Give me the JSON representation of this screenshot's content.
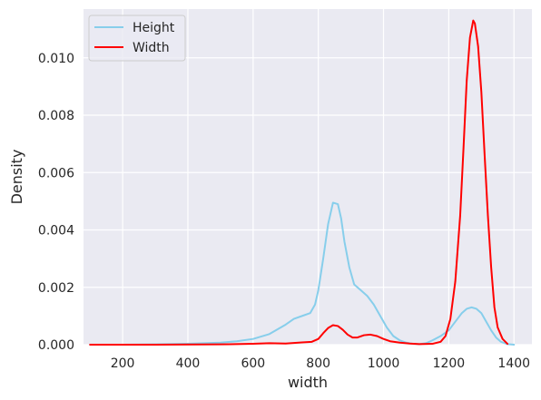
{
  "chart_data": {
    "type": "line",
    "title": "",
    "xlabel": "width",
    "ylabel": "Density",
    "xlim": [
      80,
      1455
    ],
    "ylim": [
      0,
      0.0117
    ],
    "x_ticks": [
      200,
      400,
      600,
      800,
      1000,
      1200,
      1400
    ],
    "y_ticks": [
      0.0,
      0.002,
      0.004,
      0.006,
      0.008,
      0.01
    ],
    "x_tick_labels": [
      "200",
      "400",
      "600",
      "800",
      "1000",
      "1200",
      "1400"
    ],
    "y_tick_labels": [
      "0.000",
      "0.002",
      "0.004",
      "0.006",
      "0.008",
      "0.010"
    ],
    "grid": true,
    "legend_position": "top-left",
    "series": [
      {
        "name": "Height",
        "color": "#87ceeb",
        "x": [
          100,
          200,
          300,
          400,
          500,
          550,
          600,
          650,
          700,
          725,
          750,
          775,
          790,
          800,
          815,
          830,
          845,
          860,
          870,
          880,
          895,
          910,
          930,
          950,
          970,
          990,
          1010,
          1030,
          1050,
          1070,
          1090,
          1110,
          1130,
          1150,
          1175,
          1200,
          1220,
          1240,
          1255,
          1270,
          1285,
          1300,
          1315,
          1330,
          1345,
          1360,
          1380,
          1400
        ],
        "y": [
          0.0,
          0.0,
          1e-05,
          3e-05,
          7e-05,
          0.00012,
          0.0002,
          0.00037,
          0.0007,
          0.0009,
          0.001,
          0.0011,
          0.0014,
          0.0019,
          0.003,
          0.0042,
          0.00495,
          0.0049,
          0.0044,
          0.0036,
          0.0027,
          0.0021,
          0.0019,
          0.0017,
          0.0014,
          0.001,
          0.0006,
          0.0003,
          0.00015,
          7e-05,
          3e-05,
          2e-05,
          5e-05,
          0.00015,
          0.0003,
          0.0005,
          0.0008,
          0.0011,
          0.00125,
          0.0013,
          0.00125,
          0.0011,
          0.0008,
          0.0005,
          0.00025,
          0.0001,
          2e-05,
          0.0
        ]
      },
      {
        "name": "Width",
        "color": "#ff0000",
        "x": [
          100,
          300,
          500,
          600,
          650,
          700,
          750,
          780,
          800,
          815,
          830,
          845,
          860,
          875,
          890,
          905,
          920,
          940,
          960,
          980,
          1000,
          1020,
          1050,
          1080,
          1110,
          1150,
          1175,
          1190,
          1205,
          1220,
          1235,
          1245,
          1255,
          1265,
          1275,
          1280,
          1290,
          1300,
          1310,
          1320,
          1330,
          1340,
          1350,
          1365,
          1380
        ],
        "y": [
          0.0,
          0.0,
          1e-05,
          3e-05,
          5e-05,
          4e-05,
          8e-05,
          0.0001,
          0.0002,
          0.0004,
          0.00058,
          0.00068,
          0.00065,
          0.00052,
          0.00035,
          0.00025,
          0.00025,
          0.00033,
          0.00035,
          0.0003,
          0.0002,
          0.00012,
          7e-05,
          4e-05,
          2e-05,
          3e-05,
          0.0001,
          0.0003,
          0.0009,
          0.0022,
          0.0045,
          0.0068,
          0.0092,
          0.0107,
          0.0113,
          0.0112,
          0.0104,
          0.0088,
          0.0066,
          0.0045,
          0.0027,
          0.0013,
          0.0006,
          0.0002,
          3e-05
        ]
      }
    ]
  }
}
